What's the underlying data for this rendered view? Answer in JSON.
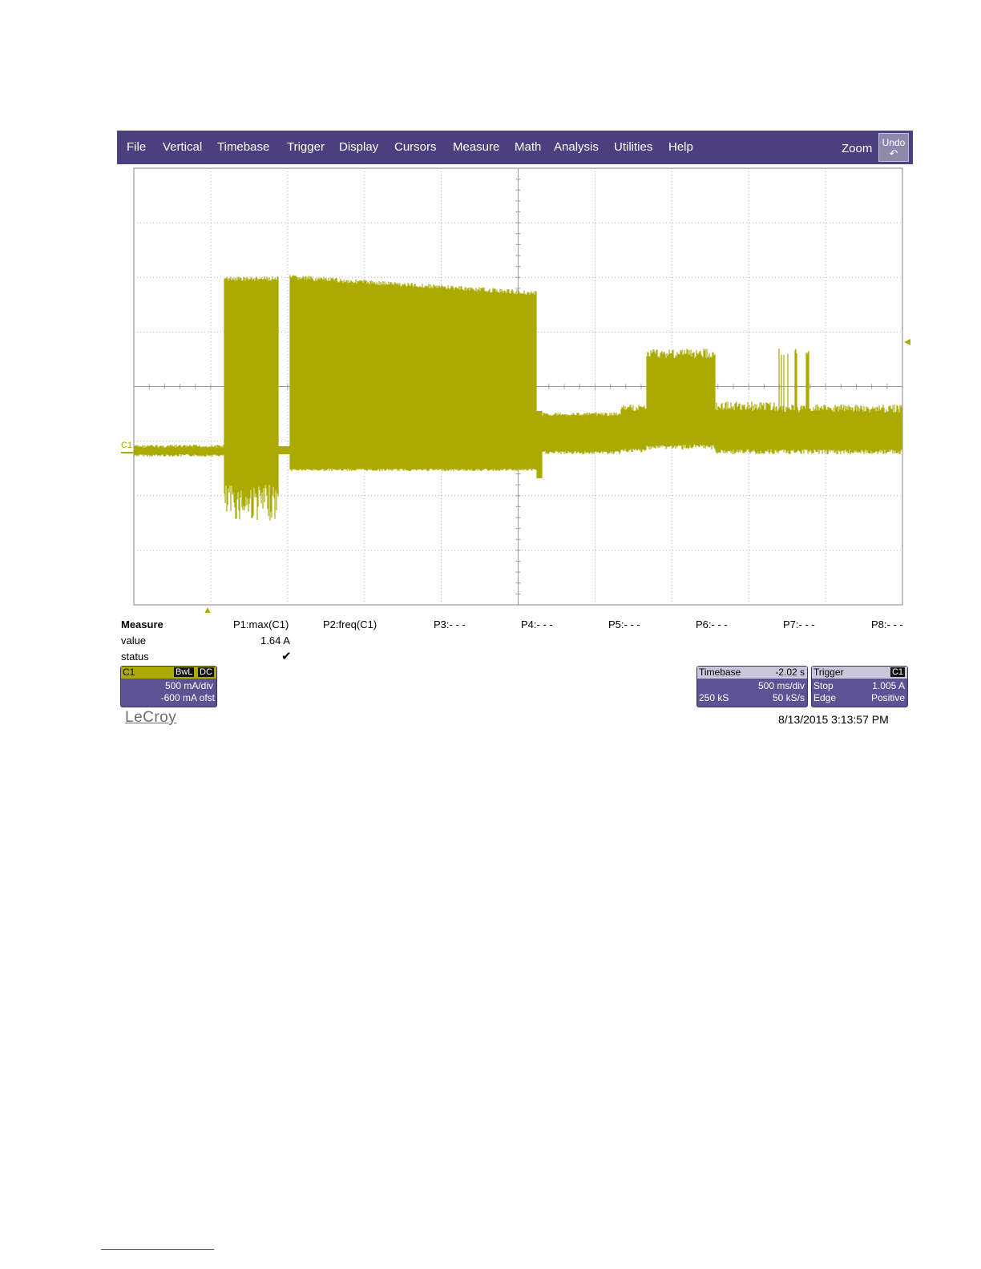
{
  "menu": {
    "items": [
      "File",
      "Vertical",
      "Timebase",
      "Trigger",
      "Display",
      "Cursors",
      "Measure",
      "Math",
      "Analysis",
      "Utilities",
      "Help"
    ],
    "zoom_label": "Zoom",
    "undo_label": "Undo",
    "undo_icon": "undo-icon"
  },
  "colors": {
    "menubar": "#4b3f7e",
    "trace": "#aaaa00",
    "panel": "#5c5294"
  },
  "waveform": {
    "channel_label": "C1"
  },
  "measure": {
    "heading": "Measure",
    "row_labels": [
      "value",
      "status"
    ],
    "params": [
      "P1:max(C1)",
      "P2:freq(C1)",
      "P3:- - -",
      "P4:- - -",
      "P5:- - -",
      "P6:- - -",
      "P7:- - -",
      "P8:- - -"
    ],
    "p1_value": "1.64 A",
    "p1_status": "✔"
  },
  "channel_panel": {
    "name": "C1",
    "badge_bwl": "BwL",
    "badge_dc": "DC",
    "scale": "500 mA/div",
    "offset": "-600 mA ofst"
  },
  "timebase_panel": {
    "label": "Timebase",
    "delay": "-2.02 s",
    "scale": "500 ms/div",
    "samples": "250 kS",
    "rate": "50 kS/s"
  },
  "trigger_panel": {
    "label": "Trigger",
    "source": "C1",
    "mode": "Stop",
    "level": "1.005 A",
    "type": "Edge",
    "slope": "Positive"
  },
  "brand": "LeCroy",
  "timestamp": "8/13/2015 3:13:57 PM"
}
